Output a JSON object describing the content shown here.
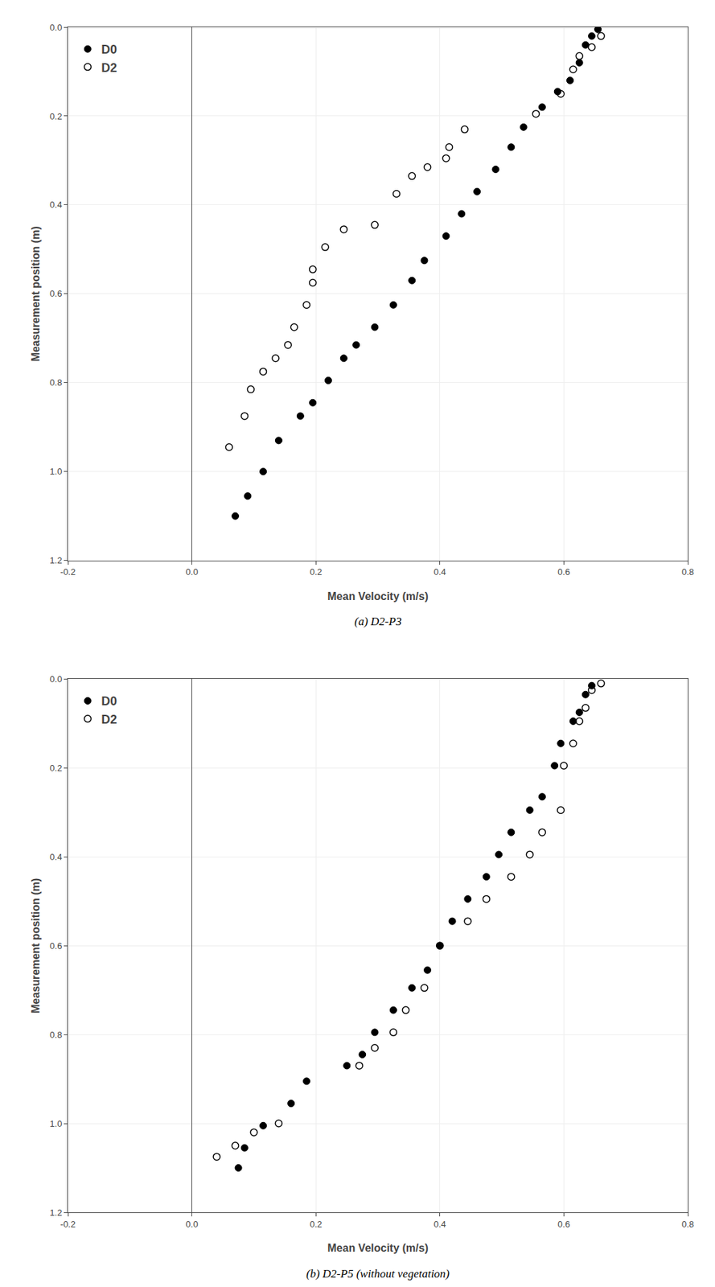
{
  "chart_data": [
    {
      "type": "scatter",
      "title": "(a) D2-P3",
      "xlabel": "Mean Velocity (m/s)",
      "ylabel": "Measurement position (m)",
      "xlim": [
        -0.2,
        0.8
      ],
      "ylim": [
        1.2,
        0.0
      ],
      "xticks": [
        -0.2,
        {
          "value": 0.0,
          "label": "0.0"
        },
        0.2,
        0.4,
        0.6,
        0.8
      ],
      "yticks": [
        {
          "value": 0.0,
          "label": "0.0"
        },
        0.2,
        0.4,
        0.6,
        0.8,
        {
          "value": 1.0,
          "label": "1.0"
        },
        1.2
      ],
      "grid": true,
      "legend": "upper left",
      "series": [
        {
          "name": "D0",
          "color": "#000000",
          "marker": "circle",
          "x": [
            0.07,
            0.09,
            0.115,
            0.14,
            0.175,
            0.195,
            0.22,
            0.245,
            0.265,
            0.295,
            0.325,
            0.355,
            0.375,
            0.41,
            0.435,
            0.46,
            0.49,
            0.515,
            0.535,
            0.565,
            0.59,
            0.61,
            0.625,
            0.635,
            0.645,
            0.655
          ],
          "values": [
            1.1,
            1.055,
            1.0,
            0.93,
            0.875,
            0.845,
            0.795,
            0.745,
            0.715,
            0.675,
            0.625,
            0.57,
            0.525,
            0.47,
            0.42,
            0.37,
            0.32,
            0.27,
            0.225,
            0.18,
            0.145,
            0.12,
            0.08,
            0.04,
            0.02,
            0.005
          ]
        },
        {
          "name": "D2",
          "color": "#000000",
          "marker": "circle-open",
          "x": [
            0.06,
            0.085,
            0.095,
            0.115,
            0.135,
            0.155,
            0.165,
            0.185,
            0.195,
            0.195,
            0.215,
            0.245,
            0.295,
            0.33,
            0.355,
            0.38,
            0.41,
            0.415,
            0.44,
            0.555,
            0.595,
            0.615,
            0.625,
            0.645,
            0.66
          ],
          "values": [
            0.945,
            0.875,
            0.815,
            0.775,
            0.745,
            0.715,
            0.675,
            0.625,
            0.575,
            0.545,
            0.495,
            0.455,
            0.445,
            0.375,
            0.335,
            0.315,
            0.295,
            0.27,
            0.23,
            0.195,
            0.15,
            0.095,
            0.065,
            0.045,
            0.02
          ]
        }
      ]
    },
    {
      "type": "scatter",
      "title": "(b) D2-P5 (without vegetation)",
      "xlabel": "Mean Velocity (m/s)",
      "ylabel": "Measurement position (m)",
      "xlim": [
        -0.2,
        0.8
      ],
      "ylim": [
        1.2,
        0.0
      ],
      "xticks": [
        -0.2,
        {
          "value": 0.0,
          "label": "0.0"
        },
        0.2,
        0.4,
        0.6,
        0.8
      ],
      "yticks": [
        {
          "value": 0.0,
          "label": "0.0"
        },
        0.2,
        0.4,
        0.6,
        0.8,
        {
          "value": 1.0,
          "label": "1.0"
        },
        1.2
      ],
      "grid": true,
      "legend": "upper left",
      "series": [
        {
          "name": "D0",
          "color": "#000000",
          "marker": "circle",
          "x": [
            0.075,
            0.085,
            0.115,
            0.16,
            0.185,
            0.25,
            0.275,
            0.295,
            0.325,
            0.355,
            0.38,
            0.4,
            0.42,
            0.445,
            0.475,
            0.495,
            0.515,
            0.545,
            0.565,
            0.585,
            0.595,
            0.615,
            0.625,
            0.635,
            0.645
          ],
          "values": [
            1.1,
            1.055,
            1.005,
            0.955,
            0.905,
            0.87,
            0.845,
            0.795,
            0.745,
            0.695,
            0.655,
            0.6,
            0.545,
            0.495,
            0.445,
            0.395,
            0.345,
            0.295,
            0.265,
            0.195,
            0.145,
            0.095,
            0.075,
            0.035,
            0.015
          ]
        },
        {
          "name": "D2",
          "color": "#000000",
          "marker": "circle-open",
          "x": [
            0.04,
            0.07,
            0.1,
            0.14,
            0.27,
            0.295,
            0.325,
            0.345,
            0.375,
            0.4,
            0.445,
            0.475,
            0.515,
            0.545,
            0.565,
            0.595,
            0.6,
            0.615,
            0.625,
            0.635,
            0.645,
            0.66
          ],
          "values": [
            1.075,
            1.05,
            1.02,
            1.0,
            0.87,
            0.83,
            0.795,
            0.745,
            0.695,
            0.6,
            0.545,
            0.495,
            0.445,
            0.395,
            0.345,
            0.295,
            0.195,
            0.145,
            0.095,
            0.065,
            0.025,
            0.01
          ]
        }
      ]
    }
  ]
}
